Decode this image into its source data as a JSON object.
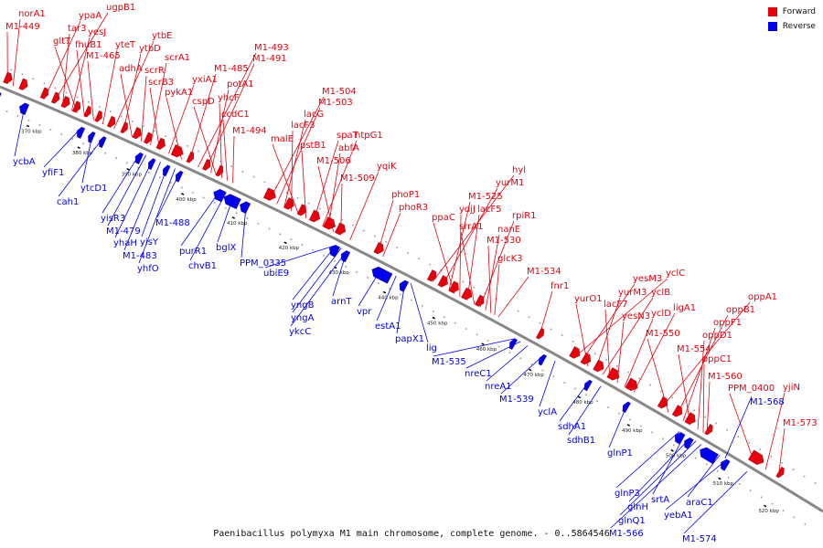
{
  "caption": "Paenibacillus polymyxa M1 main chromosome, complete genome. - 0..5864546",
  "legend": [
    {
      "label": "Forward",
      "color": "#e8000d"
    },
    {
      "label": "Reverse",
      "color": "#0000ee"
    }
  ],
  "colors": {
    "forward": "#e8000d",
    "reverse": "#0000ee",
    "backbone": "#888888"
  },
  "kbp_ticks": [
    "370 kbp",
    "380 kbp",
    "390 kbp",
    "400 kbp",
    "410 kbp",
    "420 kbp",
    "430 kbp",
    "440 kbp",
    "450 kbp",
    "460 kbp",
    "470 kbp",
    "480 kbp",
    "490 kbp",
    "500 kbp",
    "510 kbp",
    "520 kbp"
  ],
  "forward_genes": [
    "norA1",
    "M1-449",
    "ypaA",
    "ugpB1",
    "tar3",
    "yesJ",
    "gltT",
    "fhuB1",
    "M1-465",
    "yteT",
    "ytbE",
    "ytbD",
    "adhA",
    "scrR",
    "scrA1",
    "scrB3",
    "yxiA1",
    "pykA1",
    "M1-485",
    "M1-493",
    "M1-491",
    "potA1",
    "cspD",
    "yhcF",
    "ccdC1",
    "M1-494",
    "M1-504",
    "M1-503",
    "lacG",
    "lacF3",
    "malE",
    "pstB1",
    "spaT",
    "htpG1",
    "abfA",
    "M1-506",
    "M1-509",
    "yqiK",
    "phoP1",
    "phoR3",
    "hyl",
    "yurM1",
    "M1-525",
    "ppaC",
    "ydjJ",
    "lacF5",
    "srrA1",
    "rpiR1",
    "nanE",
    "M1-530",
    "glcK3",
    "M1-534",
    "fnr1",
    "yclC",
    "yesM3",
    "yurO1",
    "yurM3",
    "yclB",
    "lacF7",
    "yesN3",
    "yclD",
    "ligA1",
    "oppA1",
    "M1-550",
    "oppB1",
    "oppF1",
    "M1-554",
    "oppD1",
    "oppC1",
    "M1-560",
    "PPM_0400",
    "yjiN",
    "M1-573"
  ],
  "reverse_genes": [
    "ycbA",
    "yfiF1",
    "ytcD1",
    "cah1",
    "yisR3",
    "M1-479",
    "yhaH",
    "yisY",
    "M1-488",
    "M1-483",
    "yhfO",
    "purR1",
    "chvB1",
    "bglX",
    "PPM_0335",
    "ubiE9",
    "arnT",
    "yngB",
    "yngA",
    "ykcC",
    "vpr",
    "estA1",
    "papX1",
    "lig",
    "M1-535",
    "nreC1",
    "nreA1",
    "M1-539",
    "yclA",
    "sdhA1",
    "sdhB1",
    "glnP1",
    "glnP3",
    "srtA",
    "glnH",
    "glnQ1",
    "M1-566",
    "araC1",
    "yebA1",
    "M1-574",
    "M1-568"
  ]
}
